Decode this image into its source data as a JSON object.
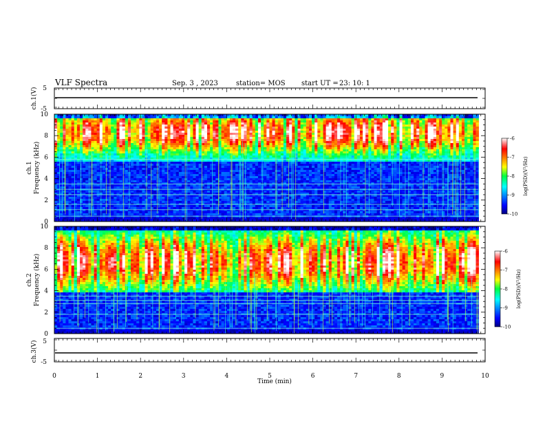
{
  "header": {
    "title": "VLF Spectra",
    "date": "Sep. 3  , 2023",
    "station": "station= MOS",
    "start_ut_label": "start  UT  =",
    "start_ut_value": "23: 10: 1"
  },
  "chart_data": [
    {
      "type": "line",
      "panel": "ch1-waveform",
      "ylabel": "ch.1(V)",
      "ylim": [
        -5,
        5
      ],
      "yticks": [
        "5",
        "-5"
      ],
      "xlim": [
        0,
        10
      ],
      "series": [
        {
          "x": [
            0,
            9.85
          ],
          "values": [
            0,
            0
          ]
        }
      ]
    },
    {
      "type": "heatmap",
      "panel": "ch1-spectrogram",
      "ylabel": "ch.1\nFrequency (kHz)",
      "ylim": [
        0,
        10
      ],
      "yticks": [
        "0",
        "2",
        "4",
        "6",
        "8",
        "10"
      ],
      "xlim": [
        0,
        10
      ],
      "data_extent_min": 9.85,
      "colorbar": {
        "label": "log(PSD)(V²/Hz)",
        "range": [
          -10,
          -6
        ],
        "ticks": [
          "-6",
          "-7",
          "-8",
          "-9",
          "-10"
        ]
      },
      "chorus_band_khz": [
        5.5,
        10
      ],
      "chorus_peak_khz": 8.3,
      "low_band_khz": [
        0,
        4.5
      ],
      "lines_khz": [
        0.5,
        1.1,
        1.6,
        2.5,
        3.0,
        3.5,
        5.8
      ]
    },
    {
      "type": "heatmap",
      "panel": "ch2-spectrogram",
      "ylabel": "ch.2\nFrequency (kHz)",
      "ylim": [
        0,
        10
      ],
      "yticks": [
        "0",
        "2",
        "4",
        "6",
        "8",
        "10"
      ],
      "xlim": [
        0,
        10
      ],
      "data_extent_min": 9.85,
      "colorbar": {
        "label": "log(PSD)(V²/Hz)",
        "range": [
          -10,
          -6
        ],
        "ticks": [
          "-6",
          "-7",
          "-8",
          "-9",
          "-10"
        ]
      },
      "chorus_band_khz": [
        3.8,
        10
      ],
      "chorus_peak_khz": 6.7,
      "low_band_khz": [
        0,
        3.8
      ],
      "lines_khz": [
        0.5,
        1.8,
        2.8,
        3.1,
        3.5
      ]
    },
    {
      "type": "line",
      "panel": "ch3-waveform",
      "ylabel": "ch.3(V)",
      "ylim": [
        -5,
        5
      ],
      "yticks": [
        "5",
        "-5"
      ],
      "xlim": [
        0,
        10
      ],
      "series": [
        {
          "x": [
            0,
            9.85
          ],
          "values": [
            0,
            0
          ]
        }
      ]
    }
  ],
  "xaxis": {
    "label": "Time  (min)",
    "ticks": [
      "0",
      "1",
      "2",
      "3",
      "4",
      "5",
      "6",
      "7",
      "8",
      "9",
      "10"
    ]
  }
}
